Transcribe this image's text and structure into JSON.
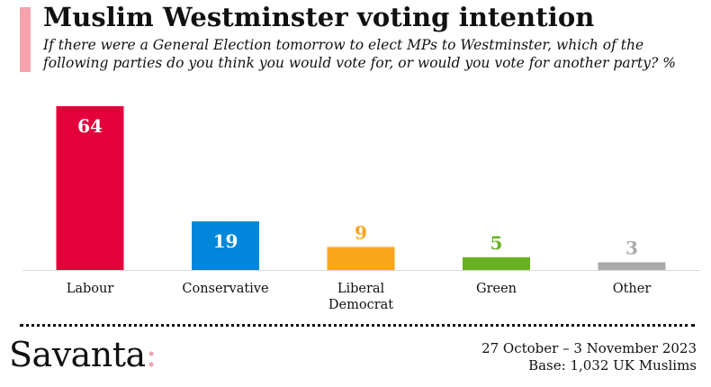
{
  "header": {
    "title": "Muslim Westminster voting intention",
    "subtitle": "If there were a General Election tomorrow to elect MPs to Westminster, which of the following parties do you think you would vote for, or would you vote for another party? %"
  },
  "chart_data": {
    "type": "bar",
    "categories": [
      "Labour",
      "Conservative",
      "Liberal\nDemocrat",
      "Green",
      "Other"
    ],
    "values": [
      64,
      19,
      9,
      5,
      3
    ],
    "colors": [
      "#e4003b",
      "#0087dc",
      "#faa61a",
      "#6ab023",
      "#aaaaaa"
    ],
    "label_colors": [
      "#ffffff",
      "#ffffff",
      "#faa61a",
      "#6ab023",
      "#aaaaaa"
    ],
    "title": "Muslim Westminster voting intention",
    "xlabel": "",
    "ylabel": "%",
    "ylim": [
      0,
      64
    ]
  },
  "footer": {
    "logo_text": "Savanta",
    "logo_colon": ":",
    "dates": "27 October – 3 November 2023",
    "base": "Base: 1,032 UK Muslims"
  },
  "brand": {
    "accent": "#f4a3ad"
  }
}
